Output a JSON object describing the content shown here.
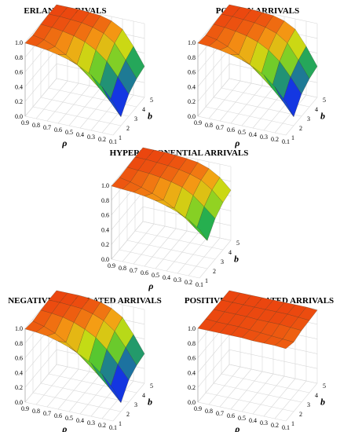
{
  "chart_data": [
    {
      "type": "surface",
      "title": "ERLANG ARRIVALS",
      "xlabel": "ρ",
      "ylabel": "b",
      "x_ticks": [
        "0.9",
        "0.8",
        "0.7",
        "0.6",
        "0.5",
        "0.4",
        "0.3",
        "0.2",
        "0.1"
      ],
      "b_ticks": [
        "1",
        "2",
        "3",
        "4",
        "5"
      ],
      "z_ticks": [
        "0.0",
        "0.2",
        "0.4",
        "0.6",
        "0.8",
        "1.0"
      ],
      "x": [
        0.9,
        0.8,
        0.7,
        0.6,
        0.5,
        0.4,
        0.3,
        0.2,
        0.1
      ],
      "b": [
        1,
        2,
        3,
        4,
        5
      ],
      "z": [
        [
          0.99,
          0.97,
          0.99,
          1.0,
          1.0
        ],
        [
          0.98,
          0.94,
          0.98,
          1.0,
          1.0
        ],
        [
          0.96,
          0.88,
          0.96,
          0.99,
          1.0
        ],
        [
          0.93,
          0.8,
          0.93,
          0.98,
          0.99
        ],
        [
          0.89,
          0.7,
          0.88,
          0.95,
          0.98
        ],
        [
          0.83,
          0.58,
          0.8,
          0.9,
          0.94
        ],
        [
          0.75,
          0.45,
          0.68,
          0.8,
          0.86
        ],
        [
          0.62,
          0.3,
          0.5,
          0.6,
          0.66
        ],
        [
          0.45,
          0.12,
          0.3,
          0.38,
          0.42
        ]
      ],
      "zlim": [
        0,
        1
      ]
    },
    {
      "type": "surface",
      "title": "POISSON ARRIVALS",
      "xlabel": "ρ",
      "ylabel": "b",
      "x_ticks": [
        "0.9",
        "0.8",
        "0.7",
        "0.6",
        "0.5",
        "0.4",
        "0.3",
        "0.2",
        "0.1"
      ],
      "b_ticks": [
        "1",
        "2",
        "3",
        "4",
        "5"
      ],
      "z_ticks": [
        "0.0",
        "0.2",
        "0.4",
        "0.6",
        "0.8",
        "1.0"
      ],
      "x": [
        0.9,
        0.8,
        0.7,
        0.6,
        0.5,
        0.4,
        0.3,
        0.2,
        0.1
      ],
      "b": [
        1,
        2,
        3,
        4,
        5
      ],
      "z": [
        [
          0.99,
          0.97,
          0.99,
          1.0,
          1.0
        ],
        [
          0.98,
          0.94,
          0.98,
          1.0,
          1.0
        ],
        [
          0.96,
          0.88,
          0.96,
          0.99,
          1.0
        ],
        [
          0.93,
          0.8,
          0.93,
          0.98,
          0.99
        ],
        [
          0.89,
          0.7,
          0.88,
          0.95,
          0.98
        ],
        [
          0.83,
          0.58,
          0.8,
          0.9,
          0.94
        ],
        [
          0.75,
          0.45,
          0.68,
          0.8,
          0.86
        ],
        [
          0.62,
          0.3,
          0.5,
          0.6,
          0.66
        ],
        [
          0.45,
          0.12,
          0.3,
          0.38,
          0.42
        ]
      ],
      "zlim": [
        0,
        1
      ]
    },
    {
      "type": "surface",
      "title": "HYPEREXPONENTIAL ARRIVALS",
      "xlabel": "ρ",
      "ylabel": "b",
      "x_ticks": [
        "0.9",
        "0.8",
        "0.7",
        "0.6",
        "0.5",
        "0.4",
        "0.3",
        "0.2",
        "0.1"
      ],
      "b_ticks": [
        "1",
        "2",
        "3",
        "4",
        "5"
      ],
      "z_ticks": [
        "0.0",
        "0.2",
        "0.4",
        "0.6",
        "0.8",
        "1.0"
      ],
      "x": [
        0.9,
        0.8,
        0.7,
        0.6,
        0.5,
        0.4,
        0.3,
        0.2,
        0.1
      ],
      "b": [
        1,
        2,
        3,
        4,
        5
      ],
      "z": [
        [
          0.99,
          0.98,
          0.99,
          1.0,
          1.0
        ],
        [
          0.98,
          0.95,
          0.98,
          1.0,
          1.0
        ],
        [
          0.97,
          0.91,
          0.97,
          0.99,
          1.0
        ],
        [
          0.95,
          0.86,
          0.95,
          0.98,
          0.99
        ],
        [
          0.92,
          0.8,
          0.92,
          0.96,
          0.98
        ],
        [
          0.88,
          0.72,
          0.88,
          0.93,
          0.96
        ],
        [
          0.83,
          0.62,
          0.8,
          0.88,
          0.91
        ],
        [
          0.76,
          0.5,
          0.68,
          0.78,
          0.82
        ],
        [
          0.66,
          0.38,
          0.55,
          0.64,
          0.68
        ]
      ],
      "zlim": [
        0,
        1
      ]
    },
    {
      "type": "surface",
      "title": "NEGATIVE CORRELATED ARRIVALS",
      "xlabel": "ρ",
      "ylabel": "b",
      "x_ticks": [
        "0.9",
        "0.8",
        "0.7",
        "0.6",
        "0.5",
        "0.4",
        "0.3",
        "0.2",
        "0.1"
      ],
      "b_ticks": [
        "1",
        "2",
        "3",
        "4",
        "5"
      ],
      "z_ticks": [
        "0.0",
        "0.2",
        "0.4",
        "0.6",
        "0.8",
        "1.0"
      ],
      "x": [
        0.9,
        0.8,
        0.7,
        0.6,
        0.5,
        0.4,
        0.3,
        0.2,
        0.1
      ],
      "b": [
        1,
        2,
        3,
        4,
        5
      ],
      "z": [
        [
          0.99,
          0.97,
          0.99,
          1.0,
          1.0
        ],
        [
          0.98,
          0.93,
          0.98,
          1.0,
          1.0
        ],
        [
          0.96,
          0.87,
          0.96,
          0.99,
          1.0
        ],
        [
          0.92,
          0.78,
          0.92,
          0.98,
          0.99
        ],
        [
          0.87,
          0.67,
          0.86,
          0.94,
          0.97
        ],
        [
          0.8,
          0.55,
          0.78,
          0.88,
          0.92
        ],
        [
          0.72,
          0.42,
          0.65,
          0.77,
          0.83
        ],
        [
          0.6,
          0.28,
          0.48,
          0.58,
          0.63
        ],
        [
          0.44,
          0.12,
          0.3,
          0.37,
          0.4
        ]
      ],
      "zlim": [
        0,
        1
      ]
    },
    {
      "type": "surface",
      "title": "POSITIVE CORRELATED ARRIVALS",
      "xlabel": "ρ",
      "ylabel": "b",
      "x_ticks": [
        "0.9",
        "0.8",
        "0.7",
        "0.6",
        "0.5",
        "0.4",
        "0.3",
        "0.2",
        "0.1"
      ],
      "b_ticks": [
        "1",
        "2",
        "3",
        "4",
        "5"
      ],
      "z_ticks": [
        "0.0",
        "0.2",
        "0.4",
        "0.6",
        "0.8",
        "1.0"
      ],
      "x": [
        0.9,
        0.8,
        0.7,
        0.6,
        0.5,
        0.4,
        0.3,
        0.2,
        0.1
      ],
      "b": [
        1,
        2,
        3,
        4,
        5
      ],
      "z": [
        [
          1.0,
          1.0,
          1.0,
          1.0,
          1.0
        ],
        [
          1.0,
          0.99,
          1.0,
          1.0,
          1.0
        ],
        [
          1.0,
          0.99,
          1.0,
          1.0,
          1.0
        ],
        [
          1.0,
          0.99,
          1.0,
          1.0,
          1.0
        ],
        [
          1.0,
          0.98,
          0.99,
          1.0,
          1.0
        ],
        [
          0.99,
          0.97,
          0.99,
          1.0,
          1.0
        ],
        [
          0.99,
          0.96,
          0.99,
          1.0,
          1.0
        ],
        [
          0.99,
          0.95,
          0.98,
          0.99,
          1.0
        ],
        [
          0.98,
          0.94,
          0.97,
          0.98,
          0.99
        ]
      ],
      "zlim": [
        0,
        1
      ]
    }
  ]
}
